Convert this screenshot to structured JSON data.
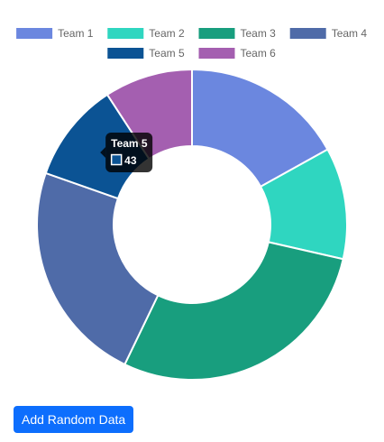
{
  "chart_data": {
    "type": "doughnut",
    "categories": [
      "Team 1",
      "Team 2",
      "Team 3",
      "Team 4",
      "Team 5",
      "Team 6"
    ],
    "values": [
      70,
      48,
      118,
      96,
      43,
      38
    ],
    "colors": [
      "#6b87df",
      "#2fd6c0",
      "#189e7e",
      "#4f6ba8",
      "#0b5394",
      "#a45fb0"
    ],
    "legend_position": "top",
    "tooltip": {
      "visible": true,
      "category": "Team 5",
      "value": "43"
    }
  },
  "button": {
    "label": "Add Random Data",
    "color": "#0d6efd"
  }
}
